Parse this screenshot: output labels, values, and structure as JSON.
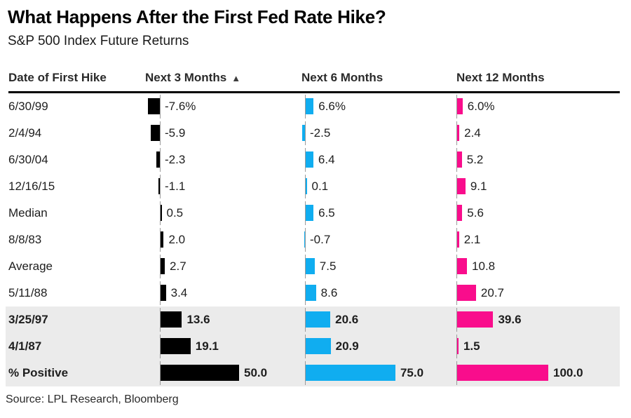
{
  "header": {
    "title": "What Happens After the First Fed Rate Hike?",
    "subtitle": "S&P 500 Index Future Returns"
  },
  "footer": {
    "source": "Source: LPL Research, Bloomberg"
  },
  "chart_data": {
    "type": "bar",
    "orientation": "horizontal",
    "title": "What Happens After the First Fed Rate Hike?",
    "subtitle": "S&P 500 Index Future Returns",
    "columns": [
      "Date of First Hike",
      "Next 3 Months",
      "Next 6 Months",
      "Next 12 Months"
    ],
    "sort_indicator": {
      "column": "Next 3 Months",
      "glyph": "▲"
    },
    "unit": "%",
    "series": [
      {
        "name": "Next 3 Months",
        "color": "#000000",
        "axis_max": 50.0
      },
      {
        "name": "Next 6 Months",
        "color": "#10adf0",
        "axis_max": 75.0
      },
      {
        "name": "Next 12 Months",
        "color": "#f90d8c",
        "axis_max": 100.0
      }
    ],
    "highlight_color": "#ebebeb",
    "rows": [
      {
        "label": "6/30/99",
        "values": [
          -7.6,
          6.6,
          6.0
        ],
        "display": [
          "-7.6%",
          "6.6%",
          "6.0%"
        ],
        "bold": false,
        "shaded": false
      },
      {
        "label": "2/4/94",
        "values": [
          -5.9,
          -2.5,
          2.4
        ],
        "display": [
          "-5.9",
          "-2.5",
          "2.4"
        ],
        "bold": false,
        "shaded": false
      },
      {
        "label": "6/30/04",
        "values": [
          -2.3,
          6.4,
          5.2
        ],
        "display": [
          "-2.3",
          "6.4",
          "5.2"
        ],
        "bold": false,
        "shaded": false
      },
      {
        "label": "12/16/15",
        "values": [
          -1.1,
          0.1,
          9.1
        ],
        "display": [
          "-1.1",
          "0.1",
          "9.1"
        ],
        "bold": false,
        "shaded": false
      },
      {
        "label": "Median",
        "values": [
          0.5,
          6.5,
          5.6
        ],
        "display": [
          "0.5",
          "6.5",
          "5.6"
        ],
        "bold": false,
        "shaded": false
      },
      {
        "label": "8/8/83",
        "values": [
          2.0,
          -0.7,
          2.1
        ],
        "display": [
          "2.0",
          "-0.7",
          "2.1"
        ],
        "bold": false,
        "shaded": false
      },
      {
        "label": "Average",
        "values": [
          2.7,
          7.5,
          10.8
        ],
        "display": [
          "2.7",
          "7.5",
          "10.8"
        ],
        "bold": false,
        "shaded": false
      },
      {
        "label": "5/11/88",
        "values": [
          3.4,
          8.6,
          20.7
        ],
        "display": [
          "3.4",
          "8.6",
          "20.7"
        ],
        "bold": false,
        "shaded": false
      },
      {
        "label": "3/25/97",
        "values": [
          13.6,
          20.6,
          39.6
        ],
        "display": [
          "13.6",
          "20.6",
          "39.6"
        ],
        "bold": true,
        "shaded": true
      },
      {
        "label": "4/1/87",
        "values": [
          19.1,
          20.9,
          1.5
        ],
        "display": [
          "19.1",
          "20.9",
          "1.5"
        ],
        "bold": true,
        "shaded": true
      },
      {
        "label": "% Positive",
        "values": [
          50.0,
          75.0,
          100.0
        ],
        "display": [
          "50.0",
          "75.0",
          "100.0"
        ],
        "bold": true,
        "shaded": true
      }
    ]
  }
}
